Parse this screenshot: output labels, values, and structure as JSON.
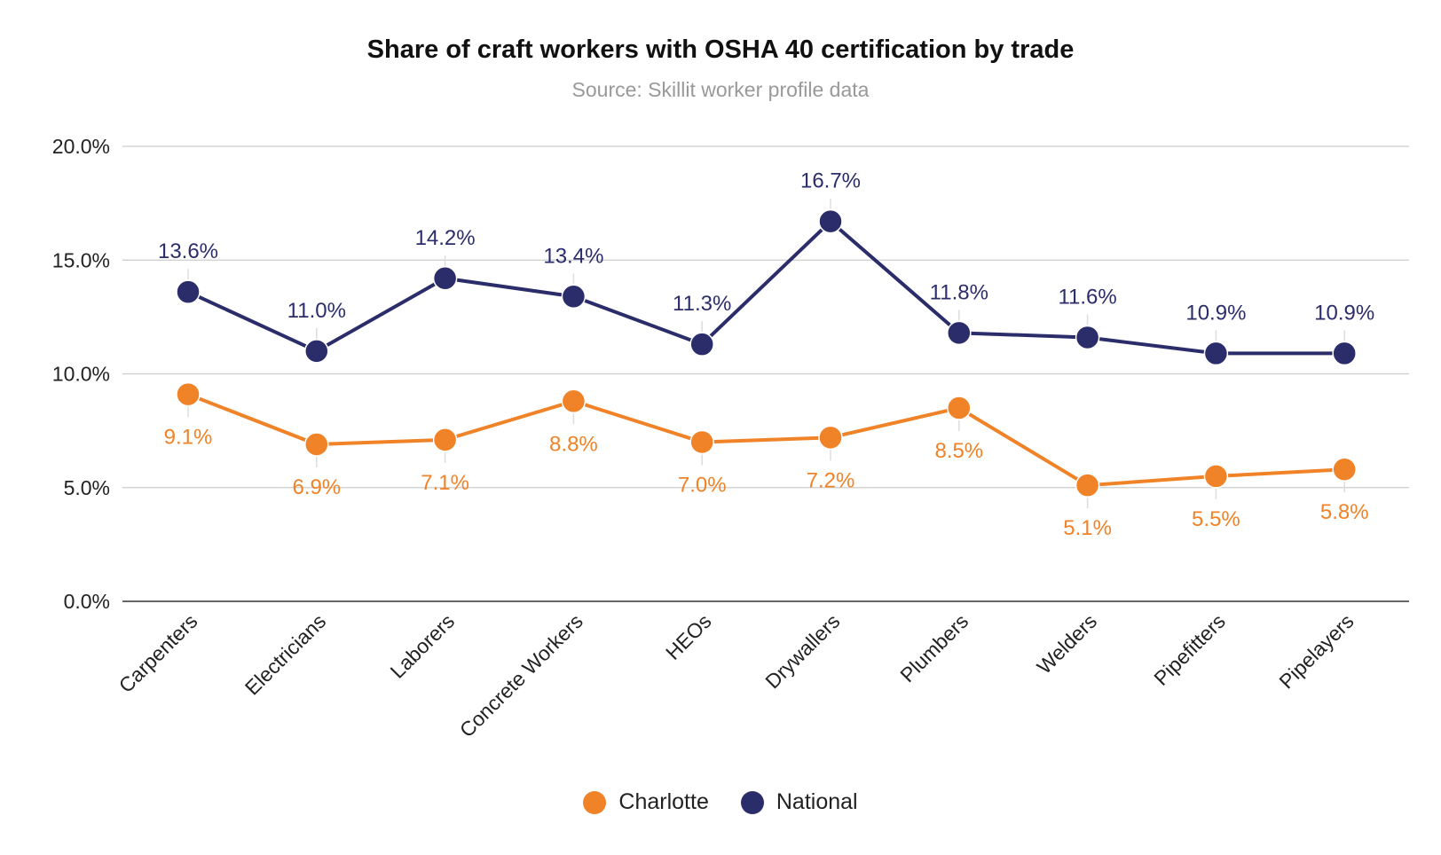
{
  "chart_data": {
    "type": "line",
    "title": "Share of craft workers with OSHA 40 certification by trade",
    "subtitle": "Source: Skillit worker profile data",
    "categories": [
      "Carpenters",
      "Electricians",
      "Laborers",
      "Concrete Workers",
      "HEOs",
      "Drywallers",
      "Plumbers",
      "Welders",
      "Pipefitters",
      "Pipelayers"
    ],
    "series": [
      {
        "name": "Charlotte",
        "color": "#F08227",
        "values": [
          9.1,
          6.9,
          7.1,
          8.8,
          7.0,
          7.2,
          8.5,
          5.1,
          5.5,
          5.8
        ],
        "labels": [
          "9.1%",
          "6.9%",
          "7.1%",
          "8.8%",
          "7.0%",
          "7.2%",
          "8.5%",
          "5.1%",
          "5.5%",
          "5.8%"
        ],
        "label_position": "below"
      },
      {
        "name": "National",
        "color": "#2B2D6B",
        "values": [
          13.6,
          11.0,
          14.2,
          13.4,
          11.3,
          16.7,
          11.8,
          11.6,
          10.9,
          10.9
        ],
        "labels": [
          "13.6%",
          "11.0%",
          "14.2%",
          "13.4%",
          "11.3%",
          "16.7%",
          "11.8%",
          "11.6%",
          "10.9%",
          "10.9%"
        ],
        "label_position": "above"
      }
    ],
    "ylim": [
      0,
      20
    ],
    "yticks": [
      0,
      5,
      10,
      15,
      20
    ],
    "ytick_labels": [
      "0.0%",
      "5.0%",
      "10.0%",
      "15.0%",
      "20.0%"
    ],
    "grid": true,
    "legend_position": "bottom-center"
  }
}
